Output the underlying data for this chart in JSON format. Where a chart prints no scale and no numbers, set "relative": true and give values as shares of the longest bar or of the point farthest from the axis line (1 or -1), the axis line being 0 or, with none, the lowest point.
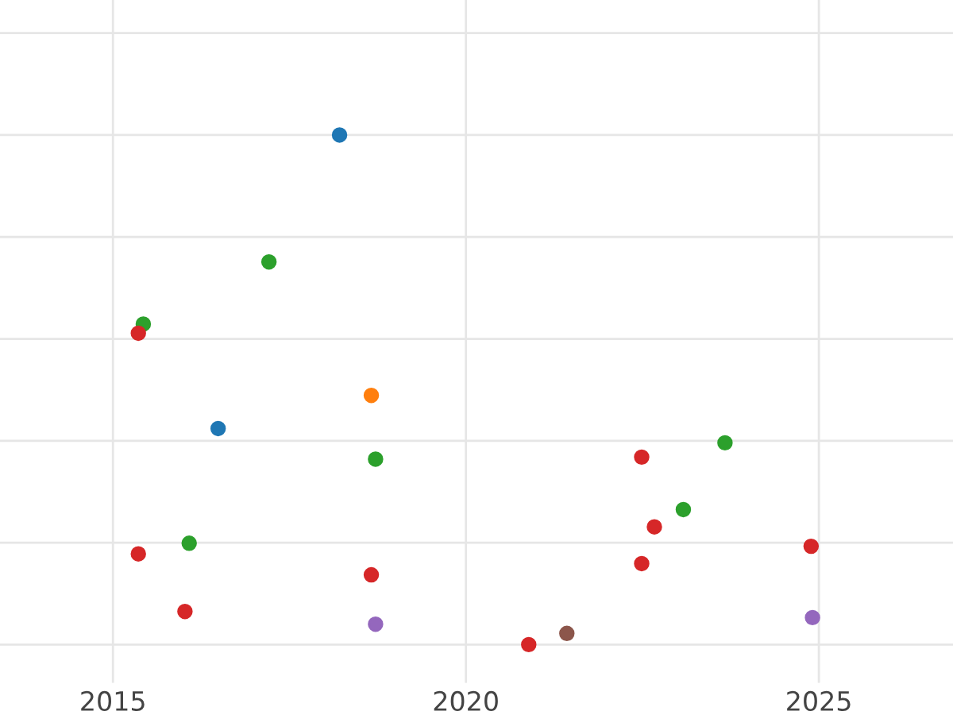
{
  "chart_data": {
    "type": "scatter",
    "relative": true,
    "xlim": [
      2013.4,
      2026.9
    ],
    "xticks": [
      2015,
      2020,
      2025
    ],
    "grid": true,
    "tick_labels": "x",
    "marker": "circle",
    "series": [
      {
        "color": "#1f77b4",
        "x": [
          2018.21,
          2016.49
        ],
        "values": [
          1,
          0.424
        ]
      },
      {
        "color": "#2ca02c",
        "x": [
          2017.21,
          2015.43,
          2018.72,
          2016.08,
          2023.67,
          2023.08
        ],
        "values": [
          0.751,
          0.629,
          0.364,
          0.199,
          0.396,
          0.265
        ]
      },
      {
        "color": "#d62728",
        "x": [
          2015.36,
          2018.66,
          2022.49,
          2022.67,
          2022.49,
          2015.36,
          2016.02,
          2020.89,
          2024.89
        ],
        "values": [
          0.611,
          0.137,
          0.368,
          0.231,
          0.159,
          0.178,
          0.065,
          0,
          0.193
        ]
      },
      {
        "color": "#ff7f0e",
        "x": [
          2018.66
        ],
        "values": [
          0.489
        ]
      },
      {
        "color": "#9467bd",
        "x": [
          2018.72,
          2024.91
        ],
        "values": [
          0.04,
          0.053
        ]
      },
      {
        "color": "#8c564b",
        "x": [
          2021.43
        ],
        "values": [
          0.022
        ]
      }
    ]
  }
}
